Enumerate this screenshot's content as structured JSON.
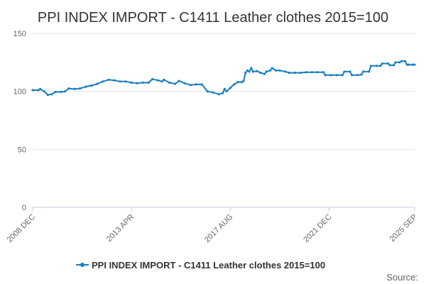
{
  "chart_data": {
    "type": "line",
    "title": "PPI INDEX IMPORT - C1411 Leather clothes 2015=100",
    "xlabel": "",
    "ylabel": "",
    "ylim": [
      0,
      150
    ],
    "y_ticks": [
      0,
      50,
      100,
      150
    ],
    "x_range": [
      "2008-12",
      "2025-09"
    ],
    "x_ticks": [
      {
        "label": "2008 DEC",
        "date": "2008-12"
      },
      {
        "label": "2013 APR",
        "date": "2013-04"
      },
      {
        "label": "2017 AUG",
        "date": "2017-08"
      },
      {
        "label": "2021 DEC",
        "date": "2021-12"
      },
      {
        "label": "2025 SEP",
        "date": "2025-09"
      }
    ],
    "grid": "horizontal",
    "legend_position": "bottom",
    "color": "#1a7fc1",
    "series": [
      {
        "name": "PPI INDEX IMPORT - C1411 Leather clothes 2015=100",
        "points": [
          [
            "2008-12",
            101
          ],
          [
            "2009-03",
            101
          ],
          [
            "2009-04",
            102
          ],
          [
            "2009-06",
            100
          ],
          [
            "2009-08",
            97
          ],
          [
            "2009-10",
            97.5
          ],
          [
            "2009-12",
            99.5
          ],
          [
            "2010-03",
            99.5
          ],
          [
            "2010-05",
            100
          ],
          [
            "2010-07",
            102.5
          ],
          [
            "2010-10",
            102
          ],
          [
            "2011-01",
            102.5
          ],
          [
            "2011-04",
            104
          ],
          [
            "2011-07",
            105
          ],
          [
            "2011-10",
            106.5
          ],
          [
            "2012-01",
            108.5
          ],
          [
            "2012-04",
            110
          ],
          [
            "2012-07",
            109.5
          ],
          [
            "2012-10",
            108.5
          ],
          [
            "2013-01",
            108.5
          ],
          [
            "2013-04",
            107.5
          ],
          [
            "2013-07",
            107
          ],
          [
            "2013-10",
            107.5
          ],
          [
            "2014-01",
            107.5
          ],
          [
            "2014-03",
            110.5
          ],
          [
            "2014-06",
            109.5
          ],
          [
            "2014-08",
            108.5
          ],
          [
            "2014-09",
            110
          ],
          [
            "2014-12",
            107.5
          ],
          [
            "2015-03",
            106.5
          ],
          [
            "2015-05",
            109
          ],
          [
            "2015-08",
            107
          ],
          [
            "2015-11",
            105.5
          ],
          [
            "2016-02",
            106
          ],
          [
            "2016-05",
            106
          ],
          [
            "2016-08",
            100
          ],
          [
            "2016-11",
            99
          ],
          [
            "2017-02",
            97.5
          ],
          [
            "2017-04",
            98.5
          ],
          [
            "2017-05",
            102
          ],
          [
            "2017-06",
            100
          ],
          [
            "2017-08",
            103
          ],
          [
            "2017-10",
            106
          ],
          [
            "2017-12",
            108
          ],
          [
            "2018-02",
            108
          ],
          [
            "2018-03",
            109
          ],
          [
            "2018-04",
            116
          ],
          [
            "2018-05",
            118
          ],
          [
            "2018-06",
            117
          ],
          [
            "2018-07",
            120
          ],
          [
            "2018-08",
            117
          ],
          [
            "2018-10",
            117.5
          ],
          [
            "2018-12",
            116
          ],
          [
            "2019-02",
            115
          ],
          [
            "2019-03",
            117
          ],
          [
            "2019-05",
            118
          ],
          [
            "2019-06",
            120
          ],
          [
            "2019-08",
            118
          ],
          [
            "2019-10",
            118
          ],
          [
            "2020-01",
            117
          ],
          [
            "2020-03",
            116
          ],
          [
            "2020-06",
            116
          ],
          [
            "2020-09",
            116
          ],
          [
            "2020-12",
            116.5
          ],
          [
            "2021-03",
            116.5
          ],
          [
            "2021-06",
            116.5
          ],
          [
            "2021-09",
            116.5
          ],
          [
            "2021-10",
            114
          ],
          [
            "2022-01",
            114
          ],
          [
            "2022-04",
            114
          ],
          [
            "2022-07",
            114
          ],
          [
            "2022-08",
            117
          ],
          [
            "2022-11",
            117
          ],
          [
            "2022-12",
            114
          ],
          [
            "2023-03",
            114
          ],
          [
            "2023-05",
            114.5
          ],
          [
            "2023-06",
            117
          ],
          [
            "2023-09",
            117
          ],
          [
            "2023-10",
            122
          ],
          [
            "2024-01",
            122
          ],
          [
            "2024-03",
            122
          ],
          [
            "2024-04",
            124
          ],
          [
            "2024-07",
            124
          ],
          [
            "2024-08",
            122.5
          ],
          [
            "2024-10",
            122.5
          ],
          [
            "2024-11",
            125
          ],
          [
            "2025-01",
            125
          ],
          [
            "2025-02",
            126
          ],
          [
            "2025-04",
            126
          ],
          [
            "2025-05",
            123
          ],
          [
            "2025-06",
            123
          ],
          [
            "2025-08",
            123
          ],
          [
            "2025-09",
            123
          ]
        ]
      }
    ],
    "source": "Source:"
  }
}
